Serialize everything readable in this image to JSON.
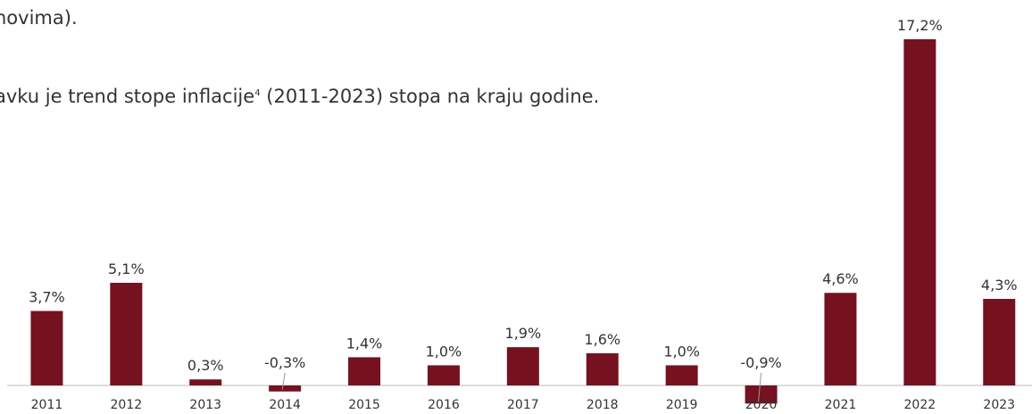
{
  "text": {
    "line1": "novima).",
    "line2": "avku je trend stope inflacije",
    "footnote": "4",
    "line2_end": "(2011-2023) stopa na kraju godine."
  },
  "chart_data": {
    "type": "bar",
    "color": "#76111f",
    "categories": [
      "2011",
      "2012",
      "2013",
      "2014",
      "2015",
      "2016",
      "2017",
      "2018",
      "2019",
      "2020",
      "2021",
      "2022",
      "2023"
    ],
    "values": [
      3.7,
      5.1,
      0.3,
      -0.3,
      1.4,
      1.0,
      1.9,
      1.6,
      1.0,
      -0.9,
      4.6,
      17.2,
      4.3
    ],
    "value_labels": [
      "3,7%",
      "5,1%",
      "0,3%",
      "-0,3%",
      "1,4%",
      "1,0%",
      "1,9%",
      "1,6%",
      "1,0%",
      "-0,9%",
      "4,6%",
      "17,2%",
      "4,3%"
    ]
  }
}
